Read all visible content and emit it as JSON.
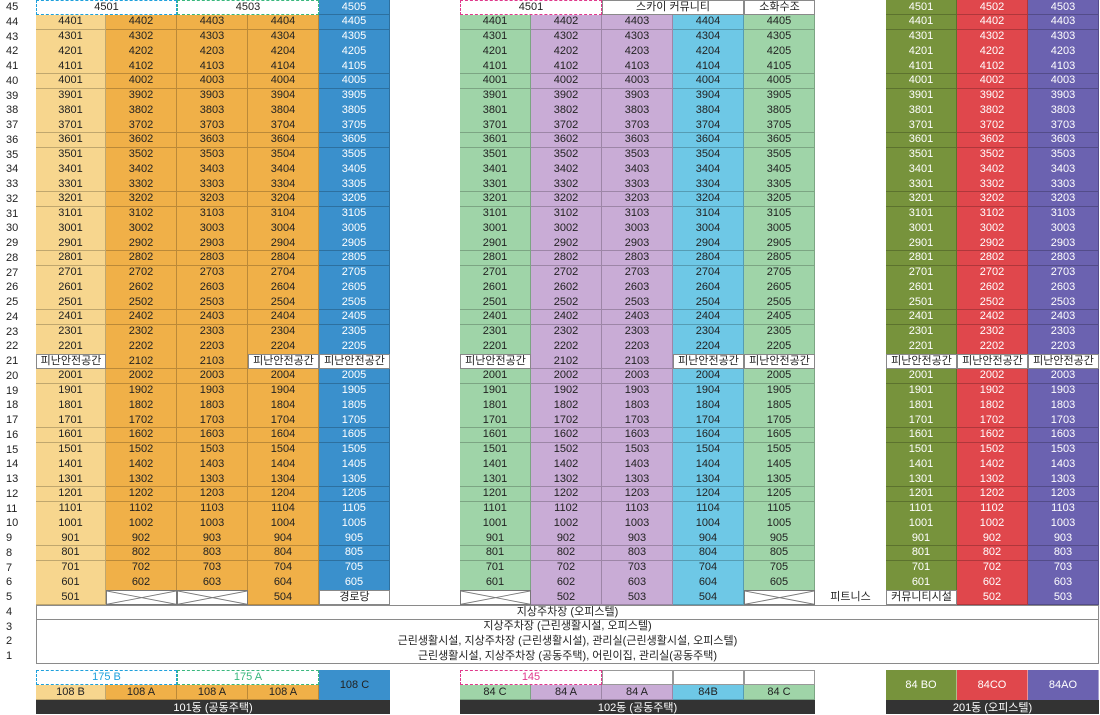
{
  "colors": {
    "light_yellow": "#f7d68e",
    "orange": "#f0b048",
    "blue": "#3a90cc",
    "green": "#9fd4a8",
    "purple": "#c9acd6",
    "sky": "#6ec8e6",
    "olive": "#77933c",
    "red": "#e0474c",
    "indigo": "#6b62b0",
    "white": "#ffffff",
    "dash_cyan": "#1ea0dc",
    "dash_pink": "#e0388c",
    "dash_green": "#3ab87e",
    "dark_bar": "#333333"
  },
  "top_rows": {
    "b101": {
      "top_left_dashed_label": "4501",
      "top_mid_dashed_label": "4503",
      "col5_top": "4505"
    },
    "b102": {
      "top_dashed_label": "4501",
      "sky_community": "스카이 커뮤니티",
      "fire_water": "소화수조"
    },
    "b201": [
      "4501",
      "4502",
      "4503"
    ]
  },
  "refuge_label": "피난안전공간",
  "floor5": {
    "b101": [
      "501",
      "",
      "",
      "504",
      "경로당"
    ],
    "b102": [
      "",
      "502",
      "503",
      "504",
      ""
    ],
    "b102_extra": "피트니스",
    "b201": [
      "커뮤니티시설",
      "502",
      "503"
    ]
  },
  "lower_floors": [
    {
      "floor": "4",
      "text": "지상주차장 (오피스텔)"
    },
    {
      "floor": "3",
      "text": "지상주차장 (근린생활시설, 오피스텔)"
    },
    {
      "floor": "2",
      "text": "근린생활시설, 지상주차장 (근린생활시설), 관리실(근린생활시설, 오피스텔)"
    },
    {
      "floor": "1",
      "text": "근린생활시설, 지상주차장 (공동주택), 어린이집, 관리실(공동주택)"
    }
  ],
  "legend": {
    "b101": {
      "types": [
        "108 B",
        "108 A",
        "108 A",
        "108 A",
        "108 C"
      ],
      "dashed": [
        "175 B",
        "175 A"
      ],
      "building": "101동 (공동주택)"
    },
    "b102": {
      "types": [
        "84 C",
        "84 A",
        "84 A",
        "84B",
        "84 C"
      ],
      "dashed": [
        "145"
      ],
      "building": "102동 (공동주택)"
    },
    "b201": {
      "types": [
        "84 BO",
        "84CO",
        "84AO"
      ],
      "building": "201동 (오피스텔)"
    }
  }
}
